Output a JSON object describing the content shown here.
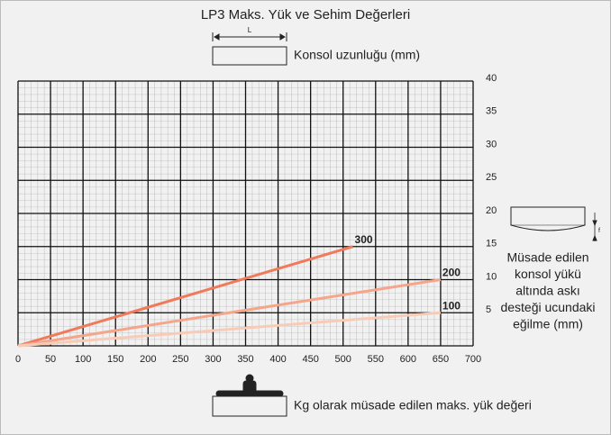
{
  "chart_data": {
    "type": "line",
    "title": "LP3 Maks. Yük ve Sehim Değerleri",
    "top_label": "Konsol uzunluğu (mm)",
    "x_label": "Kg olarak müsade edilen maks. yük değeri",
    "y_label_lines": [
      "Müsade edilen",
      "konsol yükü",
      "altında askı",
      "desteği ucundaki",
      "eğilme (mm)"
    ],
    "annotations": [
      "L",
      "f"
    ],
    "series": [
      {
        "name": "300",
        "color": "#f07a5a",
        "x": [
          0,
          515
        ],
        "values": [
          0,
          15
        ]
      },
      {
        "name": "200",
        "color": "#f5a58a",
        "x": [
          0,
          650
        ],
        "values": [
          0,
          10
        ]
      },
      {
        "name": "100",
        "color": "#f8cbb6",
        "x": [
          0,
          650
        ],
        "values": [
          0,
          5
        ]
      }
    ],
    "xlim": [
      0,
      700
    ],
    "xticks": [
      0,
      50,
      100,
      150,
      200,
      250,
      300,
      350,
      400,
      450,
      500,
      550,
      600,
      650,
      700
    ],
    "ylim": [
      0,
      40
    ],
    "yticks": [
      0,
      5,
      10,
      15,
      20,
      25,
      30,
      35,
      40
    ],
    "y_axis_side": "right",
    "grid": true
  }
}
